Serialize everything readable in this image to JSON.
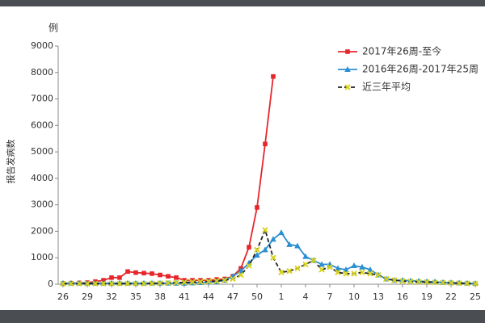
{
  "chart_data": {
    "type": "line",
    "y_unit": "例",
    "ylabel": "报告发病数",
    "categories": [
      "26",
      null,
      null,
      "29",
      null,
      null,
      "32",
      null,
      null,
      "35",
      null,
      null,
      "38",
      null,
      null,
      "41",
      null,
      null,
      "44",
      null,
      null,
      "47",
      null,
      null,
      "50",
      null,
      null,
      "1",
      null,
      null,
      "4",
      null,
      null,
      "7",
      null,
      null,
      "10",
      null,
      null,
      "13",
      null,
      null,
      "16",
      null,
      null,
      "19",
      null,
      null,
      "22",
      null,
      null,
      "25"
    ],
    "ylim": [
      0,
      9000
    ],
    "yticks": [
      0,
      1000,
      2000,
      3000,
      4000,
      5000,
      6000,
      7000,
      8000,
      9000
    ],
    "grid": false,
    "legend": "upper right",
    "series": [
      {
        "name": "2017年26周-至今",
        "color": "#e5262b",
        "marker": "square",
        "dashed": false,
        "values": [
          30,
          40,
          50,
          60,
          100,
          150,
          250,
          250,
          480,
          440,
          420,
          400,
          350,
          300,
          250,
          150,
          150,
          150,
          150,
          180,
          200,
          300,
          600,
          1400,
          2900,
          5300,
          7850,
          null,
          null,
          null,
          null,
          null,
          null,
          null,
          null,
          null,
          null,
          null,
          null,
          null,
          null,
          null,
          null,
          null,
          null,
          null,
          null,
          null,
          null,
          null,
          null,
          null
        ]
      },
      {
        "name": "2016年26周-2017年25周",
        "color": "#2b8fd2",
        "marker": "triangle",
        "dashed": false,
        "values": [
          40,
          40,
          40,
          40,
          40,
          40,
          40,
          40,
          40,
          40,
          40,
          40,
          40,
          40,
          40,
          40,
          50,
          60,
          80,
          100,
          150,
          300,
          500,
          800,
          1100,
          1300,
          1700,
          1950,
          1500,
          1450,
          1050,
          900,
          750,
          750,
          600,
          550,
          700,
          650,
          550,
          350,
          200,
          150,
          150,
          130,
          120,
          100,
          90,
          70,
          60,
          50,
          40,
          30
        ]
      },
      {
        "name": "近三年平均",
        "color": "#222222",
        "marker_color": "#d6d21e",
        "marker": "x",
        "dashed": true,
        "values": [
          20,
          20,
          20,
          20,
          20,
          20,
          20,
          20,
          20,
          20,
          20,
          30,
          40,
          50,
          60,
          70,
          80,
          90,
          100,
          120,
          150,
          200,
          350,
          700,
          1300,
          2050,
          1000,
          450,
          500,
          600,
          750,
          900,
          550,
          650,
          450,
          400,
          400,
          450,
          400,
          350,
          200,
          150,
          120,
          100,
          90,
          80,
          70,
          60,
          50,
          40,
          30,
          20
        ]
      }
    ]
  }
}
